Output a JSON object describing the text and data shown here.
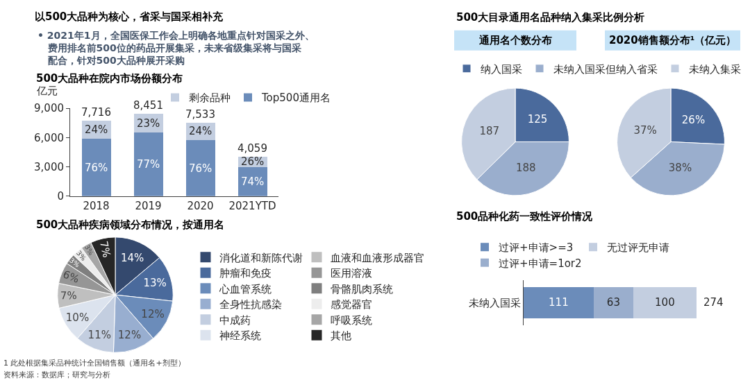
{
  "chart_data": [
    {
      "type": "other",
      "title": "以500大品种为核心，省采与国采相补充",
      "annotations": [
        "• 2021年1月，全国医保工作会上明确各地重点针对国采之外、费用排名前500位的药品开展集采，未来省级集采将与国采配合，针对500大品种展开采购"
      ]
    },
    {
      "type": "bar",
      "title": "500大品种在院内市场份额分布",
      "ylabel": "亿元",
      "categories": [
        "2018",
        "2019",
        "2020",
        "2021YTD"
      ],
      "stacked": true,
      "series": [
        {
          "name": "Top500通用名",
          "color": "#6b8cba",
          "values": [
            5864,
            6507,
            5725,
            3004
          ]
        },
        {
          "name": "剩余品种",
          "color": "#c3cee0",
          "values": [
            1852,
            1944,
            1808,
            1055
          ]
        }
      ],
      "totals": [
        "7,716",
        "8,451",
        "7,533",
        "4,059"
      ],
      "ylim": [
        0,
        9000
      ],
      "yticks": [
        0,
        {
          "value": 3000,
          "label": "3,000"
        },
        {
          "value": 6000,
          "label": "6,000"
        },
        {
          "value": 9000,
          "label": "9,000"
        }
      ],
      "legend": "top",
      "annotations": [
        "76%",
        "77%",
        "76%",
        "74%",
        "24%",
        "23%",
        "24%",
        "26%"
      ]
    },
    {
      "type": "pie",
      "title": "500大品种疾病领域分布情况，按通用名",
      "categories": [
        "消化道和新陈代谢",
        "肿瘤和免疫",
        "心血管系统",
        "全身性抗感染",
        "中成药",
        "神经系统",
        "血液和血液形成器官",
        "医用溶液",
        "骨骼肌肉系统",
        "感觉器官",
        "呼吸系统",
        "其他"
      ],
      "values": [
        14,
        13,
        12,
        12,
        11,
        10,
        7,
        6,
        3,
        3,
        3,
        7
      ],
      "colors": [
        "#34496e",
        "#4a6a9c",
        "#6b8cba",
        "#98aed0",
        "#c3cee0",
        "#dce3ee",
        "#bfbfbf",
        "#969696",
        "#7f7f7f",
        "#ededed",
        "#a6a6a6",
        "#262626"
      ],
      "value_labels": [
        "14%",
        "13%",
        "12%",
        "12%",
        "11%",
        "10%",
        "7%",
        "6%",
        "3%",
        "3%",
        "3%",
        "7%"
      ],
      "legend": "right",
      "annotations": [
        "1 此处根据集采品种统计全国销售额（通用名+剂型）",
        "资料来源：数据库；研究与分析"
      ]
    },
    {
      "type": "pie",
      "title": "500大目录通用名品种纳入集采比例分析",
      "subtitle": "通用名个数分布",
      "categories": [
        "纳入国采",
        "未纳入国采但纳入省采",
        "未纳入集采"
      ],
      "values": [
        125,
        188,
        187
      ],
      "colors": [
        "#4a6a9c",
        "#9aaecd",
        "#c3cee0"
      ],
      "data_labels": true,
      "legend": "top"
    },
    {
      "type": "pie",
      "title": "2020销售额分布¹（亿元）",
      "categories": [
        null,
        null,
        null
      ],
      "values": [
        26,
        38,
        37
      ],
      "colors": [
        "#4a6a9c",
        "#9aaecd",
        "#c3cee0"
      ],
      "value_labels": [
        "26%",
        "38%",
        "37%"
      ]
    },
    {
      "type": "bar",
      "orientation": "horizontal",
      "stacked": true,
      "title": "500品种化药一致性评价情况",
      "categories": [
        "未纳入国采"
      ],
      "series": [
        {
          "name": "过评+申请>=3",
          "color": "#6b8cba",
          "values": [
            111
          ]
        },
        {
          "name": "过评+申请=1or2",
          "color": "#9aaecd",
          "values": [
            63
          ]
        },
        {
          "name": "无过评无申请",
          "color": "#c3cee0",
          "values": [
            100
          ]
        }
      ],
      "data_labels": true,
      "totals": [
        "274"
      ],
      "legend": "top"
    }
  ]
}
